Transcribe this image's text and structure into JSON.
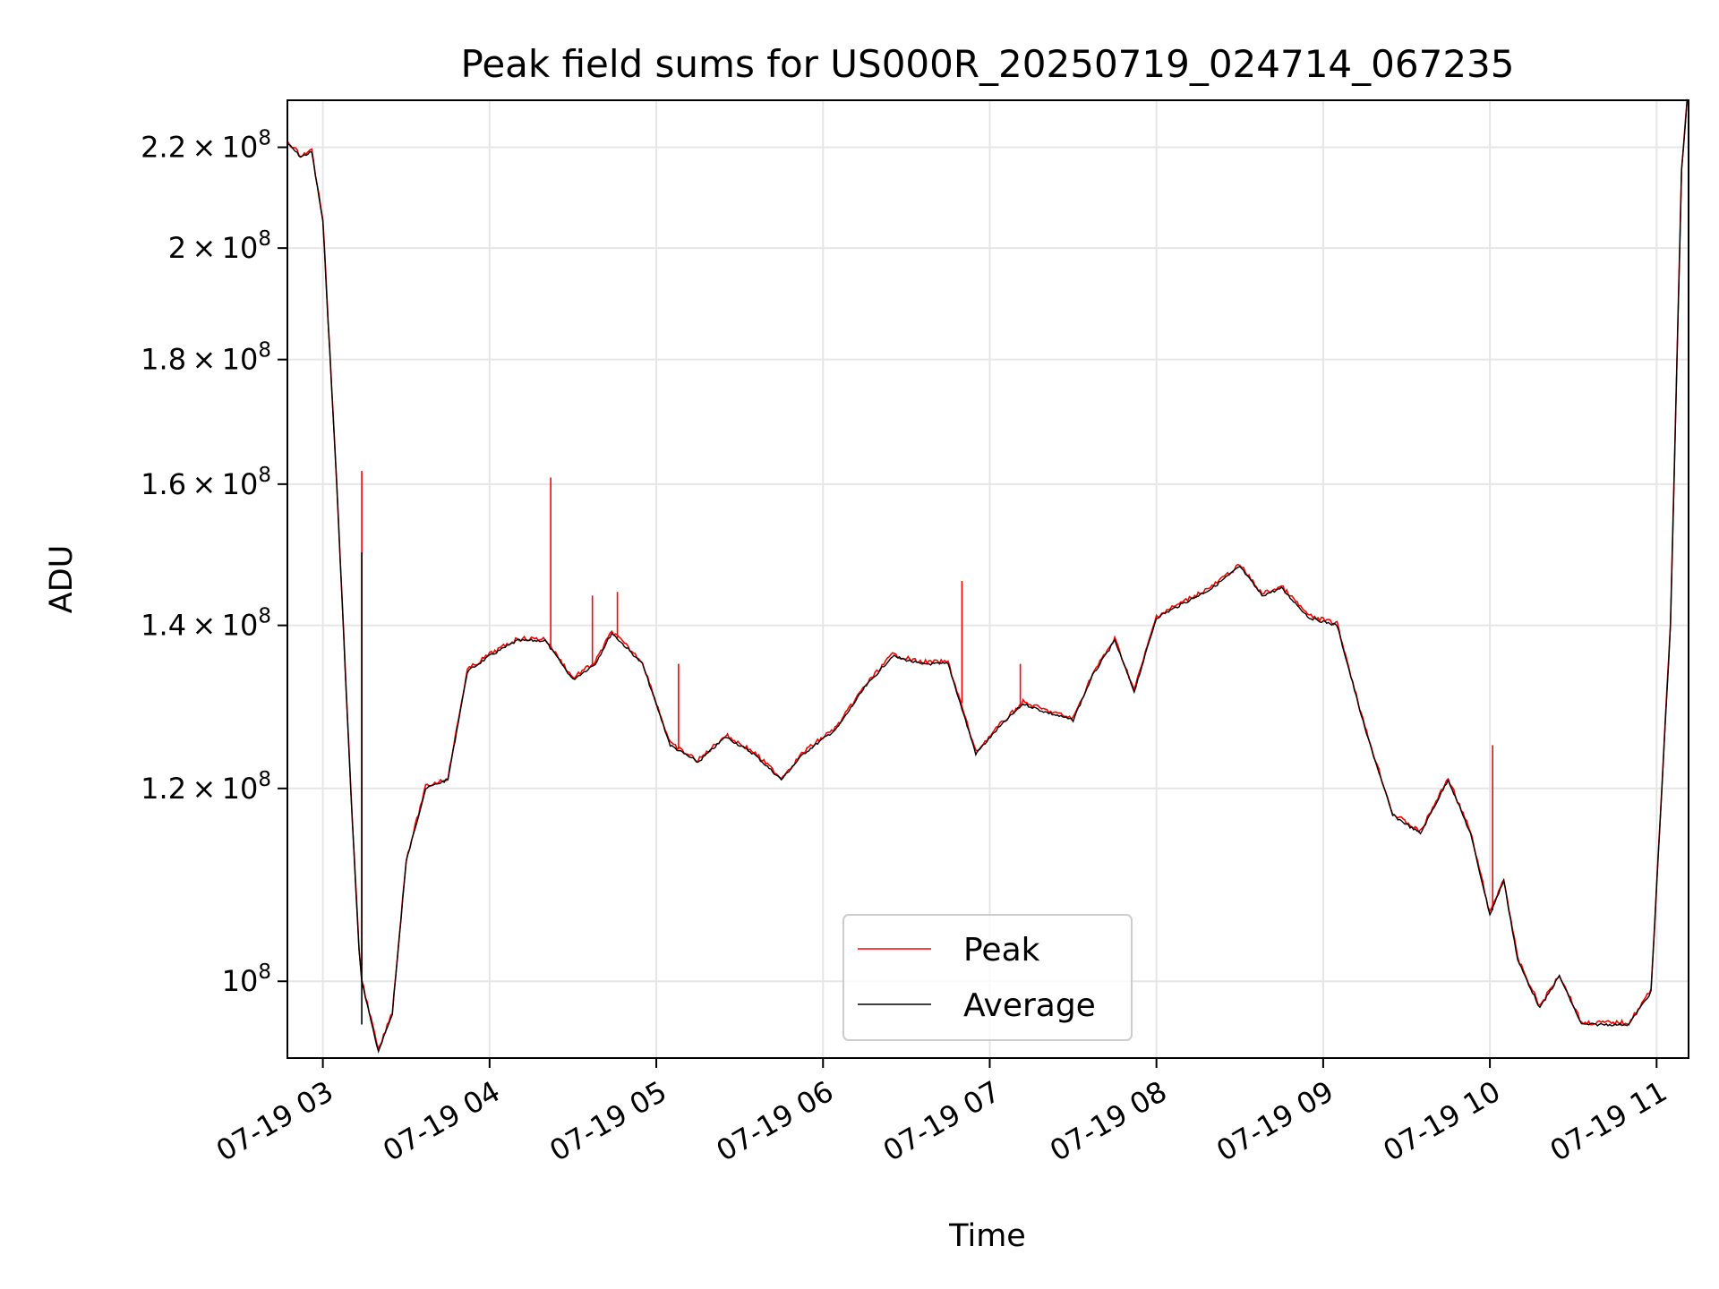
{
  "chart_data": {
    "type": "line",
    "title": "Peak field sums for US000R_20250719_024714_067235",
    "xlabel": "Time",
    "ylabel": "ADU",
    "y_scale": "log",
    "ylim": [
      93000000,
      230000000
    ],
    "xlim": [
      "2025-07-19 02:47:14",
      "2025-07-19 11:11:30"
    ],
    "grid": true,
    "legend_position": "lower center",
    "x_ticks": [
      {
        "t": "2025-07-19 03:00",
        "label": "07-19 03"
      },
      {
        "t": "2025-07-19 04:00",
        "label": "07-19 04"
      },
      {
        "t": "2025-07-19 05:00",
        "label": "07-19 05"
      },
      {
        "t": "2025-07-19 06:00",
        "label": "07-19 06"
      },
      {
        "t": "2025-07-19 07:00",
        "label": "07-19 07"
      },
      {
        "t": "2025-07-19 08:00",
        "label": "07-19 08"
      },
      {
        "t": "2025-07-19 09:00",
        "label": "07-19 09"
      },
      {
        "t": "2025-07-19 10:00",
        "label": "07-19 10"
      },
      {
        "t": "2025-07-19 11:00",
        "label": "07-19 11"
      }
    ],
    "y_ticks": [
      {
        "value": 100000000,
        "mantissa": "",
        "exponent": "8"
      },
      {
        "value": 120000000,
        "mantissa": "1.2",
        "exponent": "8"
      },
      {
        "value": 140000000,
        "mantissa": "1.4",
        "exponent": "8"
      },
      {
        "value": 160000000,
        "mantissa": "1.6",
        "exponent": "8"
      },
      {
        "value": 180000000,
        "mantissa": "1.8",
        "exponent": "8"
      },
      {
        "value": 200000000,
        "mantissa": "2",
        "exponent": "8"
      },
      {
        "value": 220000000,
        "mantissa": "2.2",
        "exponent": "8"
      }
    ],
    "series": [
      {
        "name": "Peak",
        "color": "#ff0000",
        "spikes": [
          {
            "t": "2025-07-19 03:14",
            "value": 162000000
          },
          {
            "t": "2025-07-19 04:22",
            "value": 161000000
          },
          {
            "t": "2025-07-19 04:37",
            "value": 144000000
          },
          {
            "t": "2025-07-19 04:46",
            "value": 144500000
          },
          {
            "t": "2025-07-19 05:08",
            "value": 135000000
          },
          {
            "t": "2025-07-19 06:50",
            "value": 146000000
          },
          {
            "t": "2025-07-19 07:11",
            "value": 135000000
          },
          {
            "t": "2025-07-19 10:01",
            "value": 125000000
          }
        ]
      },
      {
        "name": "Average",
        "color": "#000000",
        "t": [
          "2025-07-19 02:47",
          "2025-07-19 02:52",
          "2025-07-19 02:56",
          "2025-07-19 03:00",
          "2025-07-19 03:05",
          "2025-07-19 03:10",
          "2025-07-19 03:13",
          "2025-07-19 03:14",
          "2025-07-19 03:20",
          "2025-07-19 03:25",
          "2025-07-19 03:30",
          "2025-07-19 03:37",
          "2025-07-19 03:45",
          "2025-07-19 03:52",
          "2025-07-19 04:00",
          "2025-07-19 04:10",
          "2025-07-19 04:20",
          "2025-07-19 04:30",
          "2025-07-19 04:38",
          "2025-07-19 04:44",
          "2025-07-19 04:55",
          "2025-07-19 05:05",
          "2025-07-19 05:15",
          "2025-07-19 05:25",
          "2025-07-19 05:35",
          "2025-07-19 05:45",
          "2025-07-19 05:53",
          "2025-07-19 06:05",
          "2025-07-19 06:15",
          "2025-07-19 06:25",
          "2025-07-19 06:35",
          "2025-07-19 06:45",
          "2025-07-19 06:55",
          "2025-07-19 07:03",
          "2025-07-19 07:12",
          "2025-07-19 07:20",
          "2025-07-19 07:30",
          "2025-07-19 07:37",
          "2025-07-19 07:45",
          "2025-07-19 07:52",
          "2025-07-19 08:00",
          "2025-07-19 08:10",
          "2025-07-19 08:20",
          "2025-07-19 08:30",
          "2025-07-19 08:38",
          "2025-07-19 08:45",
          "2025-07-19 08:55",
          "2025-07-19 09:05",
          "2025-07-19 09:15",
          "2025-07-19 09:25",
          "2025-07-19 09:35",
          "2025-07-19 09:45",
          "2025-07-19 09:53",
          "2025-07-19 10:00",
          "2025-07-19 10:05",
          "2025-07-19 10:10",
          "2025-07-19 10:18",
          "2025-07-19 10:25",
          "2025-07-19 10:33",
          "2025-07-19 10:40",
          "2025-07-19 10:50",
          "2025-07-19 10:58",
          "2025-07-19 11:05",
          "2025-07-19 11:09",
          "2025-07-19 11:11"
        ],
        "values": [
          221000000,
          218000000,
          219000000,
          205000000,
          160000000,
          120000000,
          103000000,
          100000000,
          93500000,
          97000000,
          112000000,
          120000000,
          121000000,
          134000000,
          136000000,
          138000000,
          138000000,
          133000000,
          135000000,
          139000000,
          135000000,
          125000000,
          123000000,
          126000000,
          124000000,
          121000000,
          124000000,
          127000000,
          132000000,
          136000000,
          135000000,
          135000000,
          124000000,
          127000000,
          130000000,
          129000000,
          128000000,
          133500000,
          138000000,
          131500000,
          141000000,
          143000000,
          145000000,
          148000000,
          144000000,
          145000000,
          141000000,
          140000000,
          127000000,
          117000000,
          115000000,
          121000000,
          115000000,
          106500000,
          110000000,
          102000000,
          97500000,
          100500000,
          96000000,
          96000000,
          96000000,
          99000000,
          140000000,
          215000000,
          230000000
        ]
      }
    ]
  }
}
